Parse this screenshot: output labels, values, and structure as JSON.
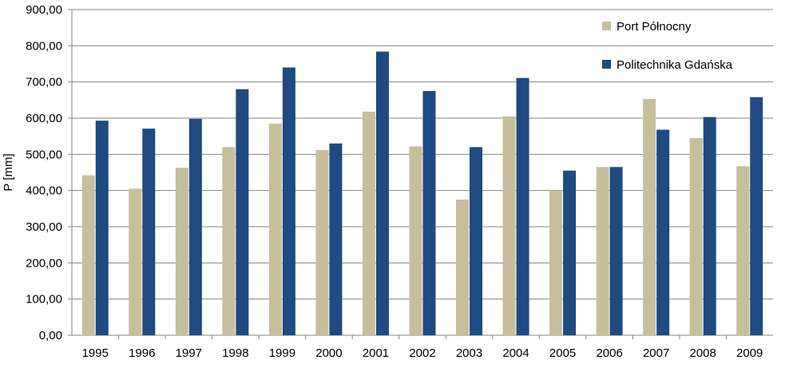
{
  "chart_data": {
    "type": "bar",
    "title": "",
    "xlabel": "",
    "ylabel": "P [mm]",
    "ylim": [
      0,
      900
    ],
    "ytick_step": 100,
    "ytick_labels": [
      "0,00",
      "100,00",
      "200,00",
      "300,00",
      "400,00",
      "500,00",
      "600,00",
      "700,00",
      "800,00",
      "900,00"
    ],
    "grid": true,
    "legend_position": "top-right",
    "categories": [
      "1995",
      "1996",
      "1997",
      "1998",
      "1999",
      "2000",
      "2001",
      "2002",
      "2003",
      "2004",
      "2005",
      "2006",
      "2007",
      "2008",
      "2009"
    ],
    "series": [
      {
        "name": "Port Północny",
        "color": "#c7bf9c",
        "values": [
          442,
          405,
          463,
          520,
          585,
          512,
          618,
          522,
          375,
          605,
          400,
          465,
          653,
          545,
          467
        ]
      },
      {
        "name": "Politechnika Gdańska",
        "color": "#1f4a82",
        "values": [
          593,
          571,
          598,
          680,
          740,
          530,
          784,
          675,
          520,
          711,
          455,
          465,
          568,
          603,
          658
        ]
      }
    ]
  }
}
